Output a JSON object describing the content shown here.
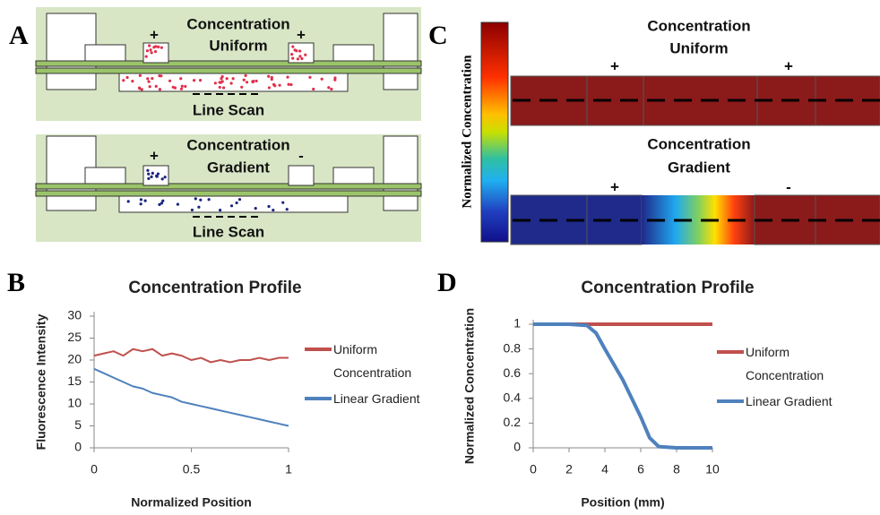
{
  "panels": {
    "a": {
      "label": "A",
      "top": {
        "plus_left": "+",
        "title_line1": "Concentration",
        "title_line2": "Uniform",
        "plus_right": "+",
        "scan": "Line Scan"
      },
      "bottom": {
        "plus_left": "+",
        "title_line1": "Concentration",
        "title_line2": "Gradient",
        "minus_right": "-",
        "scan": "Line Scan"
      }
    },
    "c": {
      "label": "C",
      "colorbar_label": "Normalized Concentration",
      "top": {
        "title_line1": "Concentration",
        "title_line2": "Uniform",
        "plus_left": "+",
        "plus_right": "+"
      },
      "bottom": {
        "title_line1": "Concentration",
        "title_line2": "Gradient",
        "plus_left": "+",
        "minus_right": "-"
      }
    }
  },
  "chart_data": [
    {
      "type": "line",
      "panel_label": "B",
      "title": "Concentration Profile",
      "xlabel": "Normalized Position",
      "ylabel": "Fluorescence Intensity",
      "x": [
        0,
        0.05,
        0.1,
        0.15,
        0.2,
        0.25,
        0.3,
        0.35,
        0.4,
        0.45,
        0.5,
        0.55,
        0.6,
        0.65,
        0.7,
        0.75,
        0.8,
        0.85,
        0.9,
        0.95,
        1
      ],
      "xlim": [
        0,
        1
      ],
      "xticks": [
        0,
        0.5,
        1
      ],
      "ylim": [
        0,
        30
      ],
      "yticks": [
        0,
        5,
        10,
        15,
        20,
        25,
        30
      ],
      "series": [
        {
          "name": "Uniform Concentration",
          "color": "#c0504d",
          "values": [
            21,
            21.5,
            22,
            21,
            22.5,
            22,
            22.5,
            21,
            21.5,
            21,
            20,
            20.5,
            19.5,
            20,
            19.5,
            20,
            20,
            20.5,
            20,
            20.5,
            20.5
          ]
        },
        {
          "name": "Linear Gradient",
          "color": "#4f81bd",
          "values": [
            18,
            17,
            16,
            15,
            14,
            13.5,
            12.5,
            12,
            11.5,
            10.5,
            10,
            9.5,
            9,
            8.5,
            8,
            7.5,
            7,
            6.5,
            6,
            5.5,
            5
          ]
        }
      ]
    },
    {
      "type": "line",
      "panel_label": "D",
      "title": "Concentration Profile",
      "xlabel": "Position (mm)",
      "ylabel": "Normalized Concentration",
      "xlim": [
        0,
        10
      ],
      "xticks": [
        0,
        2,
        4,
        6,
        8,
        10
      ],
      "ylim": [
        0,
        1
      ],
      "yticks": [
        0,
        0.2,
        0.4,
        0.6,
        0.8,
        1
      ],
      "series": [
        {
          "name": "Uniform Concentration",
          "color": "#c0504d",
          "x": [
            0,
            10
          ],
          "values": [
            1,
            1
          ]
        },
        {
          "name": "Linear Gradient",
          "color": "#4f81bd",
          "x": [
            0,
            1,
            2,
            3,
            3.5,
            4,
            5,
            6,
            6.5,
            7,
            8,
            9,
            10
          ],
          "values": [
            1,
            1,
            1,
            0.99,
            0.93,
            0.8,
            0.55,
            0.25,
            0.08,
            0.01,
            0,
            0,
            0
          ]
        }
      ]
    }
  ]
}
